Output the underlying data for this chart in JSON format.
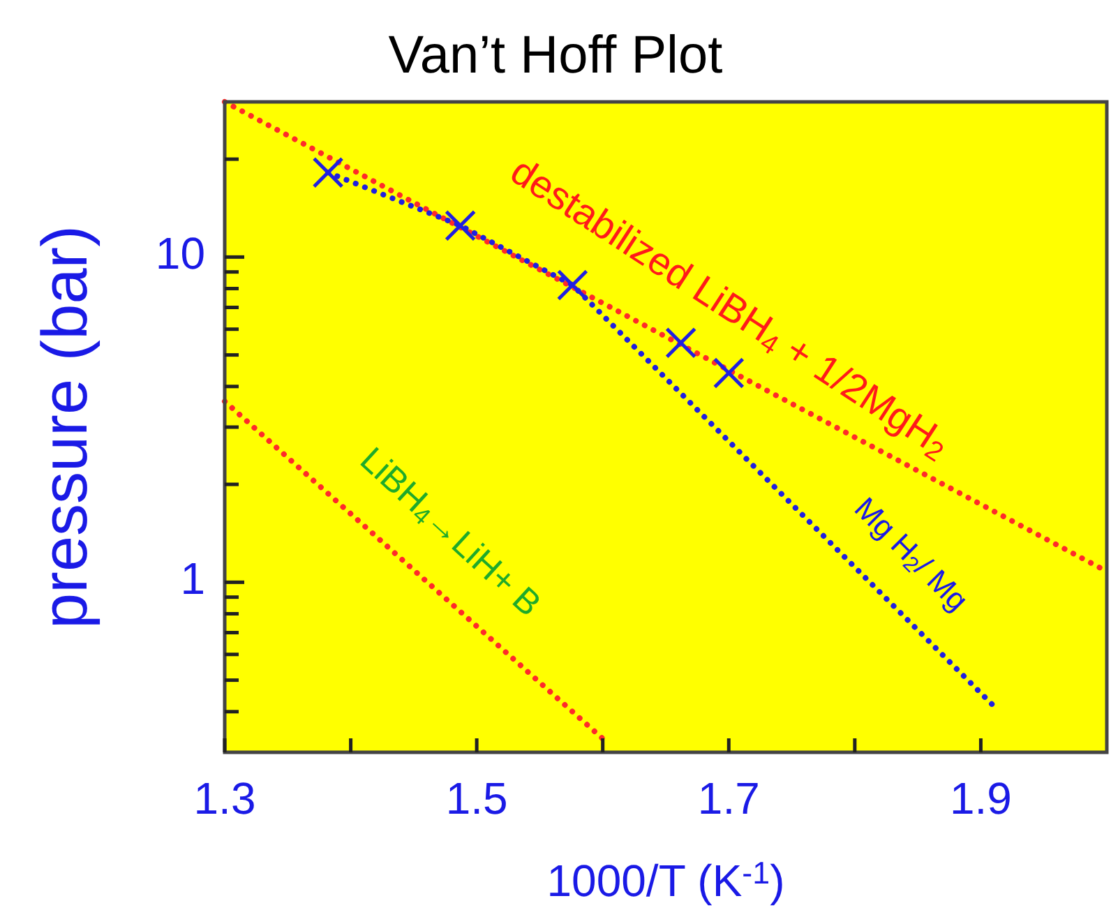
{
  "chart_data": {
    "type": "line",
    "title": "Van’t Hoff Plot",
    "xlabel": "1000/T (K$^{-1}$)",
    "ylabel": "pressure (bar)",
    "xlim": [
      1.3,
      2.0
    ],
    "xticks": [
      1.3,
      {
        "value": 1.4,
        "label": null
      },
      1.5,
      {
        "value": 1.6,
        "label": null
      },
      1.7,
      {
        "value": 1.8,
        "label": null
      },
      1.9
    ],
    "ylim": [
      0.3,
      30
    ],
    "yticks": [
      {
        "value": 0.4,
        "label": null
      },
      {
        "value": 0.5,
        "label": null
      },
      {
        "value": 0.6,
        "label": null
      },
      {
        "value": 0.7,
        "label": null
      },
      {
        "value": 0.8,
        "label": null
      },
      {
        "value": 0.9,
        "label": null
      },
      1,
      {
        "value": 2,
        "label": null
      },
      {
        "value": 3,
        "label": null
      },
      {
        "value": 4,
        "label": null
      },
      {
        "value": 5,
        "label": null
      },
      {
        "value": 6,
        "label": null
      },
      {
        "value": 7,
        "label": null
      },
      {
        "value": 8,
        "label": null
      },
      {
        "value": 9,
        "label": null
      },
      10,
      {
        "value": 20,
        "label": null
      }
    ],
    "log": true,
    "grid": false,
    "line_style": "dotted",
    "marker": "none",
    "series": [
      {
        "color": "#ff2a2a",
        "x": [
          1.3,
          2.0
        ],
        "values": [
          30,
          1.08
        ]
      },
      {
        "color": "#ff2a2a",
        "x": [
          1.3,
          1.604
        ],
        "values": [
          3.6,
          0.32
        ]
      },
      {
        "color": "#2020e0",
        "x": [
          1.382,
          1.487,
          1.576,
          1.912
        ],
        "values": [
          18.2,
          12.5,
          8.2,
          0.41
        ]
      },
      {
        "type": "scatter",
        "marker": "cross",
        "color": "#2020e0",
        "x": [
          1.382,
          1.487,
          1.576,
          1.662,
          1.7
        ],
        "values": [
          18.2,
          12.5,
          8.2,
          5.45,
          4.4
        ]
      }
    ],
    "annotations": [
      "destabilized LiBH$_{4}$  + 1/2MgH$_{2}$",
      "LiBH$_{4}$→LiH+ B",
      "Mg H$_{2}$/ Mg"
    ]
  }
}
